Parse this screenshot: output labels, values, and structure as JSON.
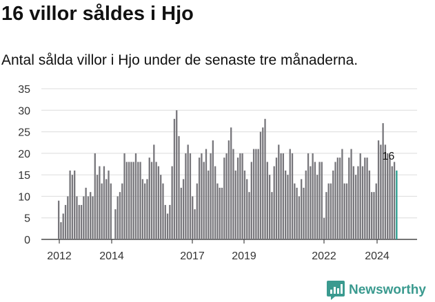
{
  "title": "16 villor såldes i Hjo",
  "subtitle": "Antal sålda villor i Hjo under de senaste tre månaderna.",
  "brand": {
    "name": "Newsworthy",
    "icon": "newsworthy-logo-icon",
    "color": "#3a9a8f"
  },
  "chart_data": {
    "type": "bar",
    "y_ticks": [
      0,
      5,
      10,
      15,
      20,
      25,
      30,
      35
    ],
    "ylim": [
      0,
      35
    ],
    "x_ticks": [
      "2012",
      "2014",
      "2017",
      "2019",
      "2022",
      "2024"
    ],
    "grid": true,
    "bar_color": "#77767b",
    "highlight_color": "#2a9d8f",
    "last_value_label": "16",
    "values": [
      9,
      4,
      6,
      8,
      10,
      16,
      15,
      16,
      10,
      8,
      8,
      10,
      12,
      10,
      11,
      10,
      20,
      15,
      17,
      13,
      17,
      14,
      16,
      13,
      0,
      7,
      10,
      11,
      13,
      20,
      18,
      18,
      18,
      18,
      20,
      18,
      18,
      14,
      13,
      14,
      19,
      18,
      22,
      18,
      17,
      15,
      13,
      8,
      6,
      8,
      17,
      28,
      30,
      24,
      12,
      14,
      20,
      22,
      20,
      10,
      7,
      13,
      19,
      20,
      18,
      21,
      16,
      20,
      23,
      17,
      13,
      12,
      12,
      19,
      20,
      23,
      26,
      21,
      16,
      19,
      20,
      20,
      16,
      14,
      11,
      18,
      21,
      21,
      21,
      25,
      26,
      28,
      18,
      15,
      11,
      17,
      19,
      22,
      20,
      20,
      16,
      15,
      21,
      20,
      13,
      12,
      10,
      14,
      12,
      16,
      20,
      17,
      20,
      18,
      15,
      18,
      18,
      5,
      11,
      13,
      13,
      16,
      18,
      19,
      19,
      21,
      13,
      13,
      19,
      21,
      17,
      15,
      17,
      20,
      17,
      19,
      19,
      16,
      11,
      11,
      13,
      23,
      22,
      27,
      22,
      20,
      19,
      17,
      18,
      16
    ]
  }
}
